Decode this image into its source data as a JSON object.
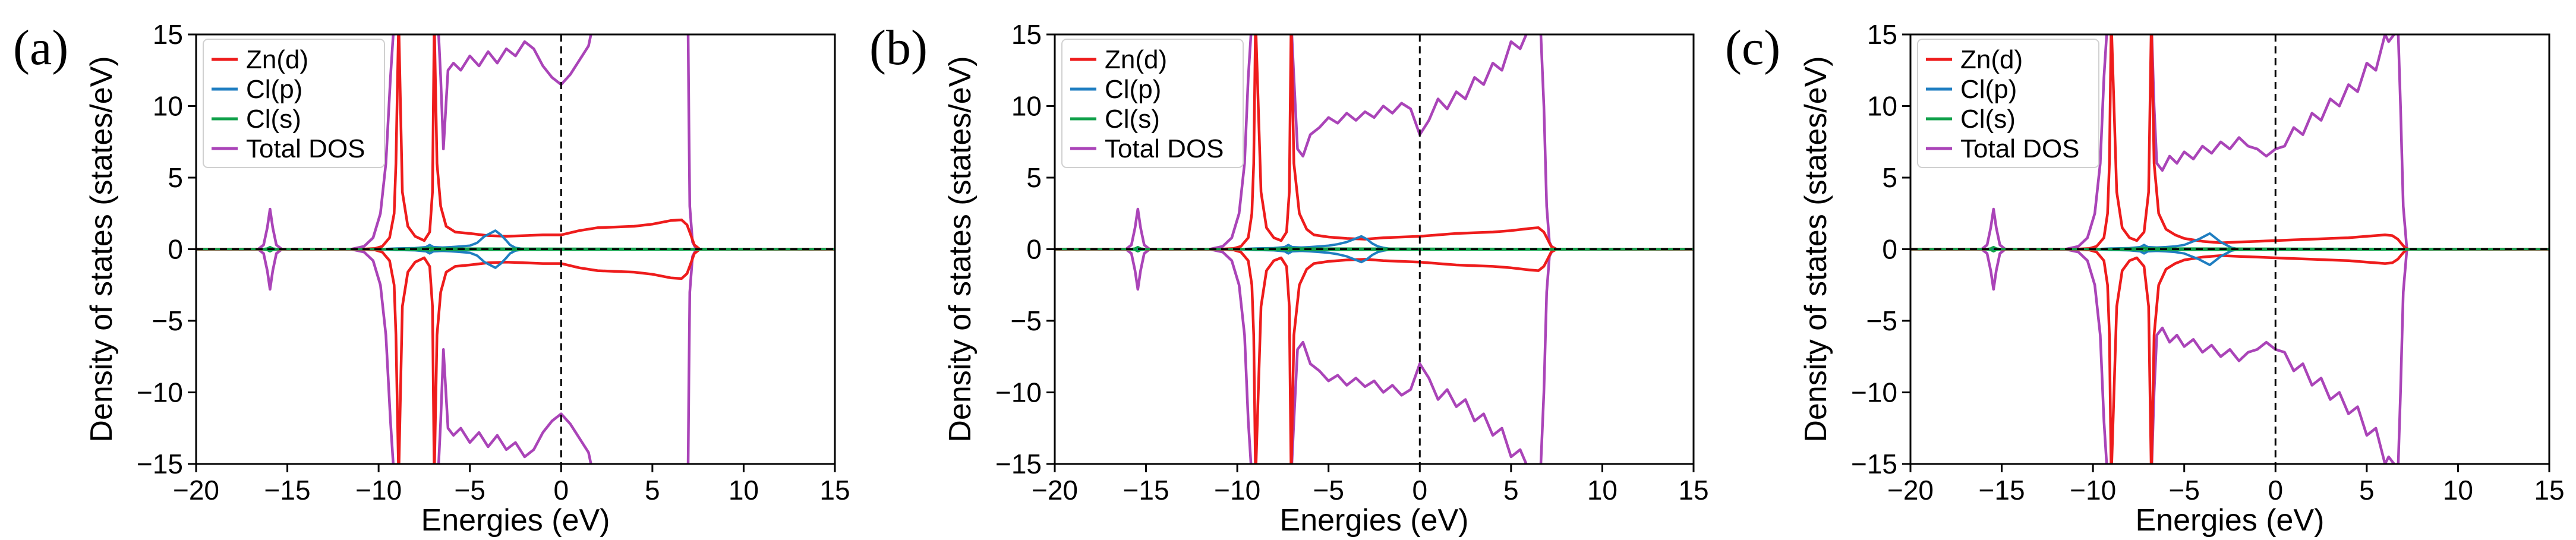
{
  "chart_data": [
    {
      "type": "line",
      "panel_label": "(a)",
      "xlabel": "Energies (eV)",
      "ylabel": "Density of states (states/eV)",
      "xlim": [
        -20,
        15
      ],
      "ylim": [
        -15,
        15
      ],
      "xticks": [
        -20,
        -15,
        -10,
        -5,
        0,
        5,
        10,
        15
      ],
      "yticks": [
        -15,
        -10,
        -5,
        0,
        5,
        10,
        15
      ],
      "legend_position": "top-left",
      "reference_lines": {
        "vertical_at_x": 0,
        "horizontal_at_y": 0,
        "style": "dashed"
      },
      "series": [
        {
          "name": "Zn(d)",
          "color": "#ee1c1c",
          "x": [
            -20,
            -11,
            -10.2,
            -9.8,
            -9.4,
            -9.15,
            -9.05,
            -8.9,
            -8.7,
            -8.4,
            -8.0,
            -7.5,
            -7.2,
            -7.05,
            -6.95,
            -6.8,
            -6.6,
            -6.3,
            -5.8,
            -5.0,
            -4.0,
            -3.0,
            -2.0,
            -1.0,
            0,
            1.0,
            2.0,
            3.0,
            4.0,
            5.0,
            6.0,
            6.6,
            6.9,
            7.1,
            7.3,
            7.6,
            15
          ],
          "y": [
            0,
            0,
            0.05,
            0.2,
            0.8,
            2.5,
            6,
            16,
            4,
            1.6,
            0.9,
            0.6,
            1.2,
            4,
            16,
            6,
            3,
            1.6,
            1.2,
            1.1,
            0.95,
            0.9,
            0.95,
            1.0,
            1.0,
            1.3,
            1.5,
            1.55,
            1.6,
            1.75,
            2.0,
            2.05,
            1.7,
            1.0,
            0.3,
            0,
            0
          ],
          "symmetric": true
        },
        {
          "name": "Cl(p)",
          "color": "#1f7ec1",
          "x": [
            -20,
            -10,
            -9,
            -8,
            -7.4,
            -7.2,
            -7.0,
            -6.5,
            -6.0,
            -5.5,
            -5.0,
            -4.6,
            -4.2,
            -3.9,
            -3.6,
            -3.3,
            -3.0,
            -2.8,
            -2.5,
            -2.0,
            0,
            15
          ],
          "y": [
            0,
            0,
            0.05,
            0.08,
            0.15,
            0.3,
            0.15,
            0.12,
            0.15,
            0.2,
            0.25,
            0.45,
            0.9,
            1.1,
            1.3,
            1.0,
            0.6,
            0.3,
            0.1,
            0,
            0,
            0
          ],
          "symmetric": true
        },
        {
          "name": "Cl(s)",
          "color": "#10a04a",
          "x": [
            -20,
            -16.4,
            -16.1,
            -15.95,
            -15.8,
            -15.5,
            -10,
            -7.4,
            -7.2,
            -7.0,
            15
          ],
          "y": [
            0,
            0,
            0.05,
            0.15,
            0.05,
            0,
            0,
            0.05,
            0.1,
            0.05,
            0
          ],
          "symmetric": true
        },
        {
          "name": "Total DOS",
          "color": "#aa44b8",
          "x": [
            -20,
            -16.6,
            -16.3,
            -16.1,
            -15.95,
            -15.8,
            -15.6,
            -15.3,
            -11.5,
            -10.8,
            -10.3,
            -9.9,
            -9.6,
            -9.35,
            -9.15,
            -9.0,
            -6.75,
            -6.6,
            -6.45,
            -6.2,
            -5.9,
            -5.5,
            -5.0,
            -4.5,
            -4.0,
            -3.5,
            -3.0,
            -2.5,
            -2.0,
            -1.5,
            -1.0,
            -0.5,
            0,
            0.5,
            1.0,
            1.5,
            1.8,
            6.95,
            7.0,
            7.05,
            7.2,
            7.4,
            15
          ],
          "y": [
            0,
            0,
            0.3,
            1.5,
            2.8,
            1.5,
            0.3,
            0,
            0,
            0.2,
            0.8,
            2.5,
            6,
            12,
            16,
            16,
            16,
            12,
            7,
            12.5,
            13,
            12.5,
            13.5,
            12.8,
            13.8,
            13,
            14,
            13.5,
            14.5,
            14,
            12.8,
            12,
            11.5,
            12.2,
            13.2,
            14.2,
            16,
            16,
            9,
            3,
            0.5,
            0,
            0
          ],
          "symmetric": true
        }
      ]
    },
    {
      "type": "line",
      "panel_label": "(b)",
      "xlabel": "Energies (eV)",
      "ylabel": "Density of states (states/eV)",
      "xlim": [
        -20,
        15
      ],
      "ylim": [
        -15,
        15
      ],
      "xticks": [
        -20,
        -15,
        -10,
        -5,
        0,
        5,
        10,
        15
      ],
      "yticks": [
        -15,
        -10,
        -5,
        0,
        5,
        10,
        15
      ],
      "legend_position": "top-left",
      "reference_lines": {
        "vertical_at_x": 0,
        "horizontal_at_y": 0,
        "style": "dashed"
      },
      "series": [
        {
          "name": "Zn(d)",
          "color": "#ee1c1c",
          "x": [
            -20,
            -11,
            -10.2,
            -9.8,
            -9.4,
            -9.2,
            -9.1,
            -9.0,
            -8.7,
            -8.4,
            -8.0,
            -7.6,
            -7.3,
            -7.15,
            -7.05,
            -6.9,
            -6.6,
            -6.2,
            -5.8,
            -5.0,
            -4.0,
            -3.0,
            -2.0,
            -1.0,
            0,
            1.0,
            2.0,
            3.0,
            4.0,
            5.0,
            6.0,
            6.5,
            6.8,
            7.0,
            7.2,
            7.5,
            15
          ],
          "y": [
            0,
            0,
            0.05,
            0.2,
            0.8,
            2.5,
            6,
            16,
            4,
            1.5,
            0.8,
            0.6,
            1.2,
            4,
            16,
            6,
            2.5,
            1.4,
            1.0,
            0.85,
            0.75,
            0.7,
            0.8,
            0.85,
            0.9,
            1.0,
            1.1,
            1.15,
            1.2,
            1.3,
            1.45,
            1.5,
            1.2,
            0.7,
            0.2,
            0,
            0
          ],
          "symmetric": true
        },
        {
          "name": "Cl(p)",
          "color": "#1f7ec1",
          "x": [
            -20,
            -10,
            -9,
            -8,
            -7.4,
            -7.2,
            -7.0,
            -6.5,
            -6.0,
            -5.5,
            -5.0,
            -4.5,
            -4.0,
            -3.6,
            -3.2,
            -2.9,
            -2.6,
            -2.3,
            -2.0,
            -1.5,
            0,
            15
          ],
          "y": [
            0,
            0,
            0.05,
            0.08,
            0.15,
            0.3,
            0.15,
            0.12,
            0.15,
            0.2,
            0.25,
            0.35,
            0.5,
            0.7,
            0.9,
            0.7,
            0.4,
            0.2,
            0.1,
            0,
            0,
            0
          ],
          "symmetric": true
        },
        {
          "name": "Cl(s)",
          "color": "#10a04a",
          "x": [
            -20,
            -15.9,
            -15.6,
            -15.45,
            -15.3,
            -15.0,
            -10,
            -7.4,
            -7.2,
            -7.0,
            15
          ],
          "y": [
            0,
            0,
            0.05,
            0.15,
            0.05,
            0,
            0,
            0.05,
            0.1,
            0.05,
            0
          ],
          "symmetric": true
        },
        {
          "name": "Total DOS",
          "color": "#aa44b8",
          "x": [
            -20,
            -16.1,
            -15.8,
            -15.6,
            -15.45,
            -15.3,
            -15.1,
            -14.8,
            -11.5,
            -10.8,
            -10.3,
            -9.9,
            -9.6,
            -9.4,
            -9.2,
            -9.1,
            -7.05,
            -6.9,
            -6.7,
            -6.4,
            -6.0,
            -5.5,
            -5.0,
            -4.5,
            -4.0,
            -3.5,
            -3.0,
            -2.5,
            -2.0,
            -1.5,
            -1.0,
            -0.5,
            0,
            0.5,
            1.0,
            1.5,
            2.0,
            2.5,
            3.0,
            3.5,
            4.0,
            4.5,
            5.0,
            5.5,
            6.0,
            6.3,
            6.6,
            6.8,
            6.95,
            7.1,
            7.3,
            15
          ],
          "y": [
            0,
            0,
            0.3,
            1.5,
            2.8,
            1.5,
            0.3,
            0,
            0,
            0.2,
            0.8,
            2.5,
            6,
            12,
            16,
            16,
            16,
            12,
            7,
            6.5,
            8,
            8.5,
            9.2,
            8.8,
            9.5,
            9,
            9.6,
            9.2,
            10,
            9.5,
            10.2,
            9.8,
            8,
            9,
            10.5,
            9.8,
            11,
            10.5,
            12,
            11.5,
            13,
            12.5,
            14.5,
            14,
            15.5,
            16,
            16,
            10,
            3,
            0.5,
            0,
            0
          ],
          "symmetric": true
        }
      ]
    },
    {
      "type": "line",
      "panel_label": "(c)",
      "xlabel": "Energies (eV)",
      "ylabel": "Density of states (states/eV)",
      "xlim": [
        -20,
        15
      ],
      "ylim": [
        -15,
        15
      ],
      "xticks": [
        -20,
        -15,
        -10,
        -5,
        0,
        5,
        10,
        15
      ],
      "yticks": [
        -15,
        -10,
        -5,
        0,
        5,
        10,
        15
      ],
      "legend_position": "top-left",
      "reference_lines": {
        "vertical_at_x": 0,
        "horizontal_at_y": 0,
        "style": "dashed"
      },
      "series": [
        {
          "name": "Zn(d)",
          "color": "#ee1c1c",
          "x": [
            -20,
            -11,
            -10.2,
            -9.8,
            -9.4,
            -9.2,
            -9.1,
            -9.0,
            -8.7,
            -8.4,
            -8.0,
            -7.6,
            -7.2,
            -6.95,
            -6.8,
            -6.65,
            -6.4,
            -6.0,
            -5.5,
            -5.0,
            -4.0,
            -3.0,
            -2.0,
            -1.0,
            0,
            1.0,
            2.0,
            3.0,
            4.0,
            5.0,
            6.0,
            6.4,
            6.7,
            6.9,
            7.1,
            7.3,
            15
          ],
          "y": [
            0,
            0,
            0.05,
            0.2,
            0.8,
            2.5,
            6,
            16,
            4,
            1.5,
            0.8,
            0.6,
            1.2,
            4,
            16,
            6,
            2.5,
            1.4,
            1.0,
            0.75,
            0.55,
            0.45,
            0.5,
            0.55,
            0.6,
            0.65,
            0.7,
            0.75,
            0.8,
            0.9,
            1.0,
            0.95,
            0.7,
            0.4,
            0.1,
            0,
            0
          ],
          "symmetric": true
        },
        {
          "name": "Cl(p)",
          "color": "#1f7ec1",
          "x": [
            -20,
            -10,
            -9,
            -8,
            -7.4,
            -7.2,
            -7.0,
            -6.5,
            -6.0,
            -5.5,
            -5.0,
            -4.6,
            -4.2,
            -3.9,
            -3.6,
            -3.3,
            -3.0,
            -2.7,
            -2.4,
            -2.0,
            0,
            15
          ],
          "y": [
            0,
            0,
            0.05,
            0.08,
            0.15,
            0.3,
            0.15,
            0.12,
            0.15,
            0.2,
            0.3,
            0.5,
            0.7,
            0.9,
            1.1,
            0.8,
            0.5,
            0.3,
            0.1,
            0,
            0,
            0
          ],
          "symmetric": true
        },
        {
          "name": "Cl(s)",
          "color": "#10a04a",
          "x": [
            -20,
            -15.9,
            -15.6,
            -15.45,
            -15.3,
            -15.0,
            -10,
            -7.4,
            -7.2,
            -7.0,
            15
          ],
          "y": [
            0,
            0,
            0.05,
            0.15,
            0.05,
            0,
            0,
            0.05,
            0.1,
            0.05,
            0
          ],
          "symmetric": true
        },
        {
          "name": "Total DOS",
          "color": "#aa44b8",
          "x": [
            -20,
            -16.1,
            -15.8,
            -15.6,
            -15.45,
            -15.3,
            -15.1,
            -14.8,
            -11.5,
            -10.8,
            -10.3,
            -9.9,
            -9.6,
            -9.4,
            -9.2,
            -9.1,
            -6.8,
            -6.65,
            -6.5,
            -6.2,
            -5.8,
            -5.4,
            -5.0,
            -4.5,
            -4.0,
            -3.5,
            -3.0,
            -2.5,
            -2.0,
            -1.5,
            -1.0,
            -0.5,
            0,
            0.5,
            1.0,
            1.5,
            2.0,
            2.5,
            3.0,
            3.5,
            4.0,
            4.5,
            5.0,
            5.5,
            6.0,
            6.2,
            6.5,
            6.7,
            6.85,
            7.0,
            7.2,
            15
          ],
          "y": [
            0,
            0,
            0.3,
            1.5,
            2.8,
            1.5,
            0.3,
            0,
            0,
            0.2,
            0.8,
            2.5,
            6,
            12,
            16,
            16,
            16,
            10,
            6,
            5.5,
            6.5,
            6.0,
            6.8,
            6.3,
            7.2,
            6.7,
            7.5,
            7.0,
            7.8,
            7.2,
            7.0,
            6.5,
            7,
            7.2,
            8.5,
            8.0,
            9.5,
            9.0,
            10.5,
            10,
            11.5,
            11,
            13,
            12.5,
            15,
            14.5,
            15,
            16,
            10,
            3,
            0,
            0
          ],
          "symmetric": true
        }
      ]
    }
  ]
}
